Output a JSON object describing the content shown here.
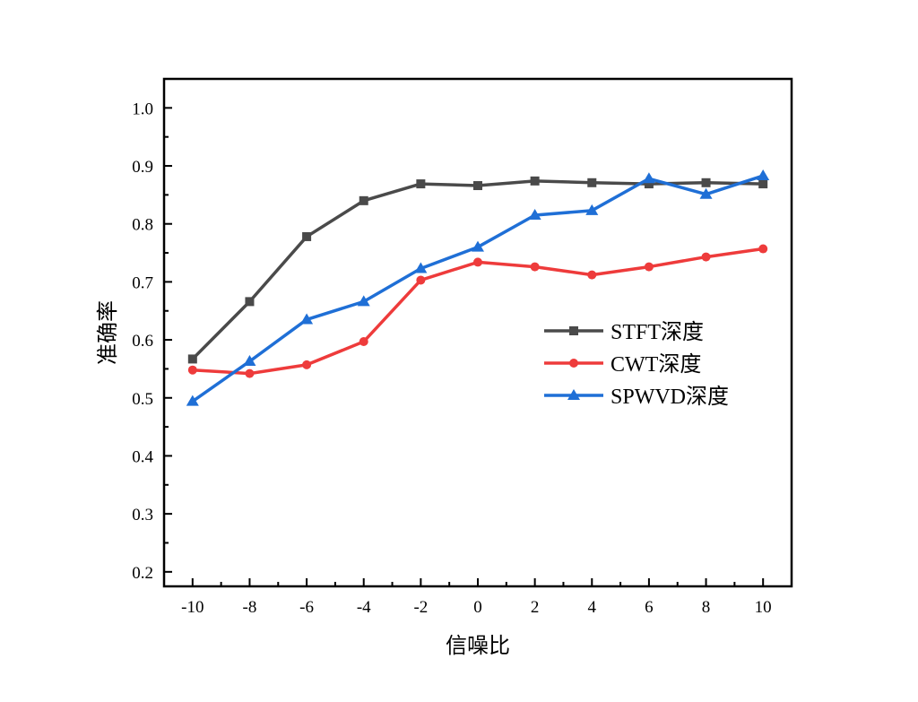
{
  "chart_data": {
    "type": "line",
    "xlabel": "信噪比",
    "ylabel": "准确率",
    "xlim": [
      -11,
      11
    ],
    "ylim": [
      0.175,
      1.05
    ],
    "x": [
      -10,
      -8,
      -6,
      -4,
      -2,
      0,
      2,
      4,
      6,
      8,
      10
    ],
    "xticks": [
      "-10",
      "-8",
      "-6",
      "-4",
      "-2",
      "0",
      "2",
      "4",
      "6",
      "8",
      "10"
    ],
    "yticks": [
      "0.2",
      "0.3",
      "0.4",
      "0.5",
      "0.6",
      "0.7",
      "0.8",
      "0.9",
      "1.0"
    ],
    "grid": false,
    "legend_position": "middle-right",
    "series": [
      {
        "name": "STFT深度",
        "color": "#4a4a4a",
        "marker": "square",
        "values": [
          0.567,
          0.666,
          0.778,
          0.84,
          0.869,
          0.866,
          0.874,
          0.871,
          0.869,
          0.871,
          0.869
        ]
      },
      {
        "name": "CWT深度",
        "color": "#ee3b3b",
        "marker": "circle",
        "values": [
          0.548,
          0.542,
          0.557,
          0.597,
          0.703,
          0.734,
          0.726,
          0.712,
          0.726,
          0.743,
          0.757
        ]
      },
      {
        "name": "SPWVD深度",
        "color": "#1f6fd6",
        "marker": "triangle",
        "values": [
          0.494,
          0.563,
          0.635,
          0.666,
          0.723,
          0.76,
          0.815,
          0.823,
          0.878,
          0.851,
          0.883
        ]
      }
    ]
  }
}
